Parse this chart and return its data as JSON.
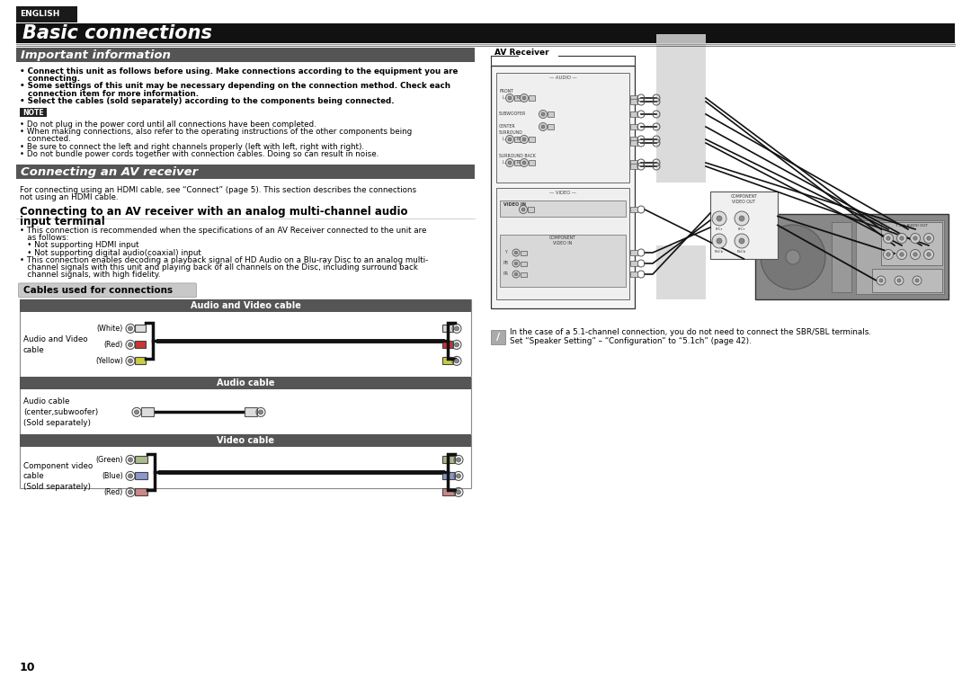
{
  "page_bg": "#ffffff",
  "english_tab_bg": "#1a1a1a",
  "english_tab_text": "ENGLISH",
  "english_tab_color": "#ffffff",
  "title_bg": "#111111",
  "title_text": "Basic connections",
  "title_color": "#ffffff",
  "section1_bg": "#555555",
  "section1_text": "Important information",
  "section1_color": "#ffffff",
  "section2_bg": "#555555",
  "section2_text": "Connecting an AV receiver",
  "section2_color": "#ffffff",
  "note_bg": "#333333",
  "note_text": "NOTE",
  "note_color": "#ffffff",
  "cables_section_bg": "#cccccc",
  "cables_section_text": "Cables used for connections",
  "table_header_bg": "#555555",
  "table_header_color": "#ffffff",
  "table_border": "#888888",
  "av_receiver_label": "AV Receiver",
  "bottom_note_line1": "In the case of a 5.1-channel connection, you do not need to connect the SBR/SBL terminals.",
  "bottom_note_line2": "Set “Speaker Setting” – “Configuration” to “5.1ch” (page 42).",
  "page_number": "10",
  "cable_table_headers": [
    "Audio and Video cable",
    "Audio cable",
    "Video cable"
  ],
  "imp_bullets": [
    "• Connect this unit as follows before using. Make connections according to the equipment you are connecting.",
    "• Some settings of this unit may be necessary depending on the connection method. Check each connection item for more information.",
    "• Select the cables (sold separately) according to the components being connected."
  ],
  "note_bullets": [
    "• Do not plug in the power cord until all connections have been completed.",
    "• When making connections, also refer to the operating instructions of the other components being connected.",
    "• Be sure to connect the left and right channels properly (left with left, right with right).",
    "• Do not bundle power cords together with connection cables. Doing so can result in noise."
  ],
  "av_desc": "For connecting using an HDMI cable, see “Connect” (page 5). This section describes the connections not using an HDMI cable.",
  "mc_title1": "Connecting to an AV receiver with an analog multi-channel audio",
  "mc_title2": "input terminal",
  "mc_bullets": [
    "• This connection is recommended when the specifications of an AV Receiver connected to the unit are as follows:",
    "  • Not supporting HDMI input",
    "  • Not supporting digital audio(coaxial) input",
    "• This connection enables decoding a playback signal of HD Audio on a Blu-ray Disc to an analog multi-channel signals with this unit and playing back of all channels on the Disc, including surround back channel signals, with high fidelity."
  ]
}
